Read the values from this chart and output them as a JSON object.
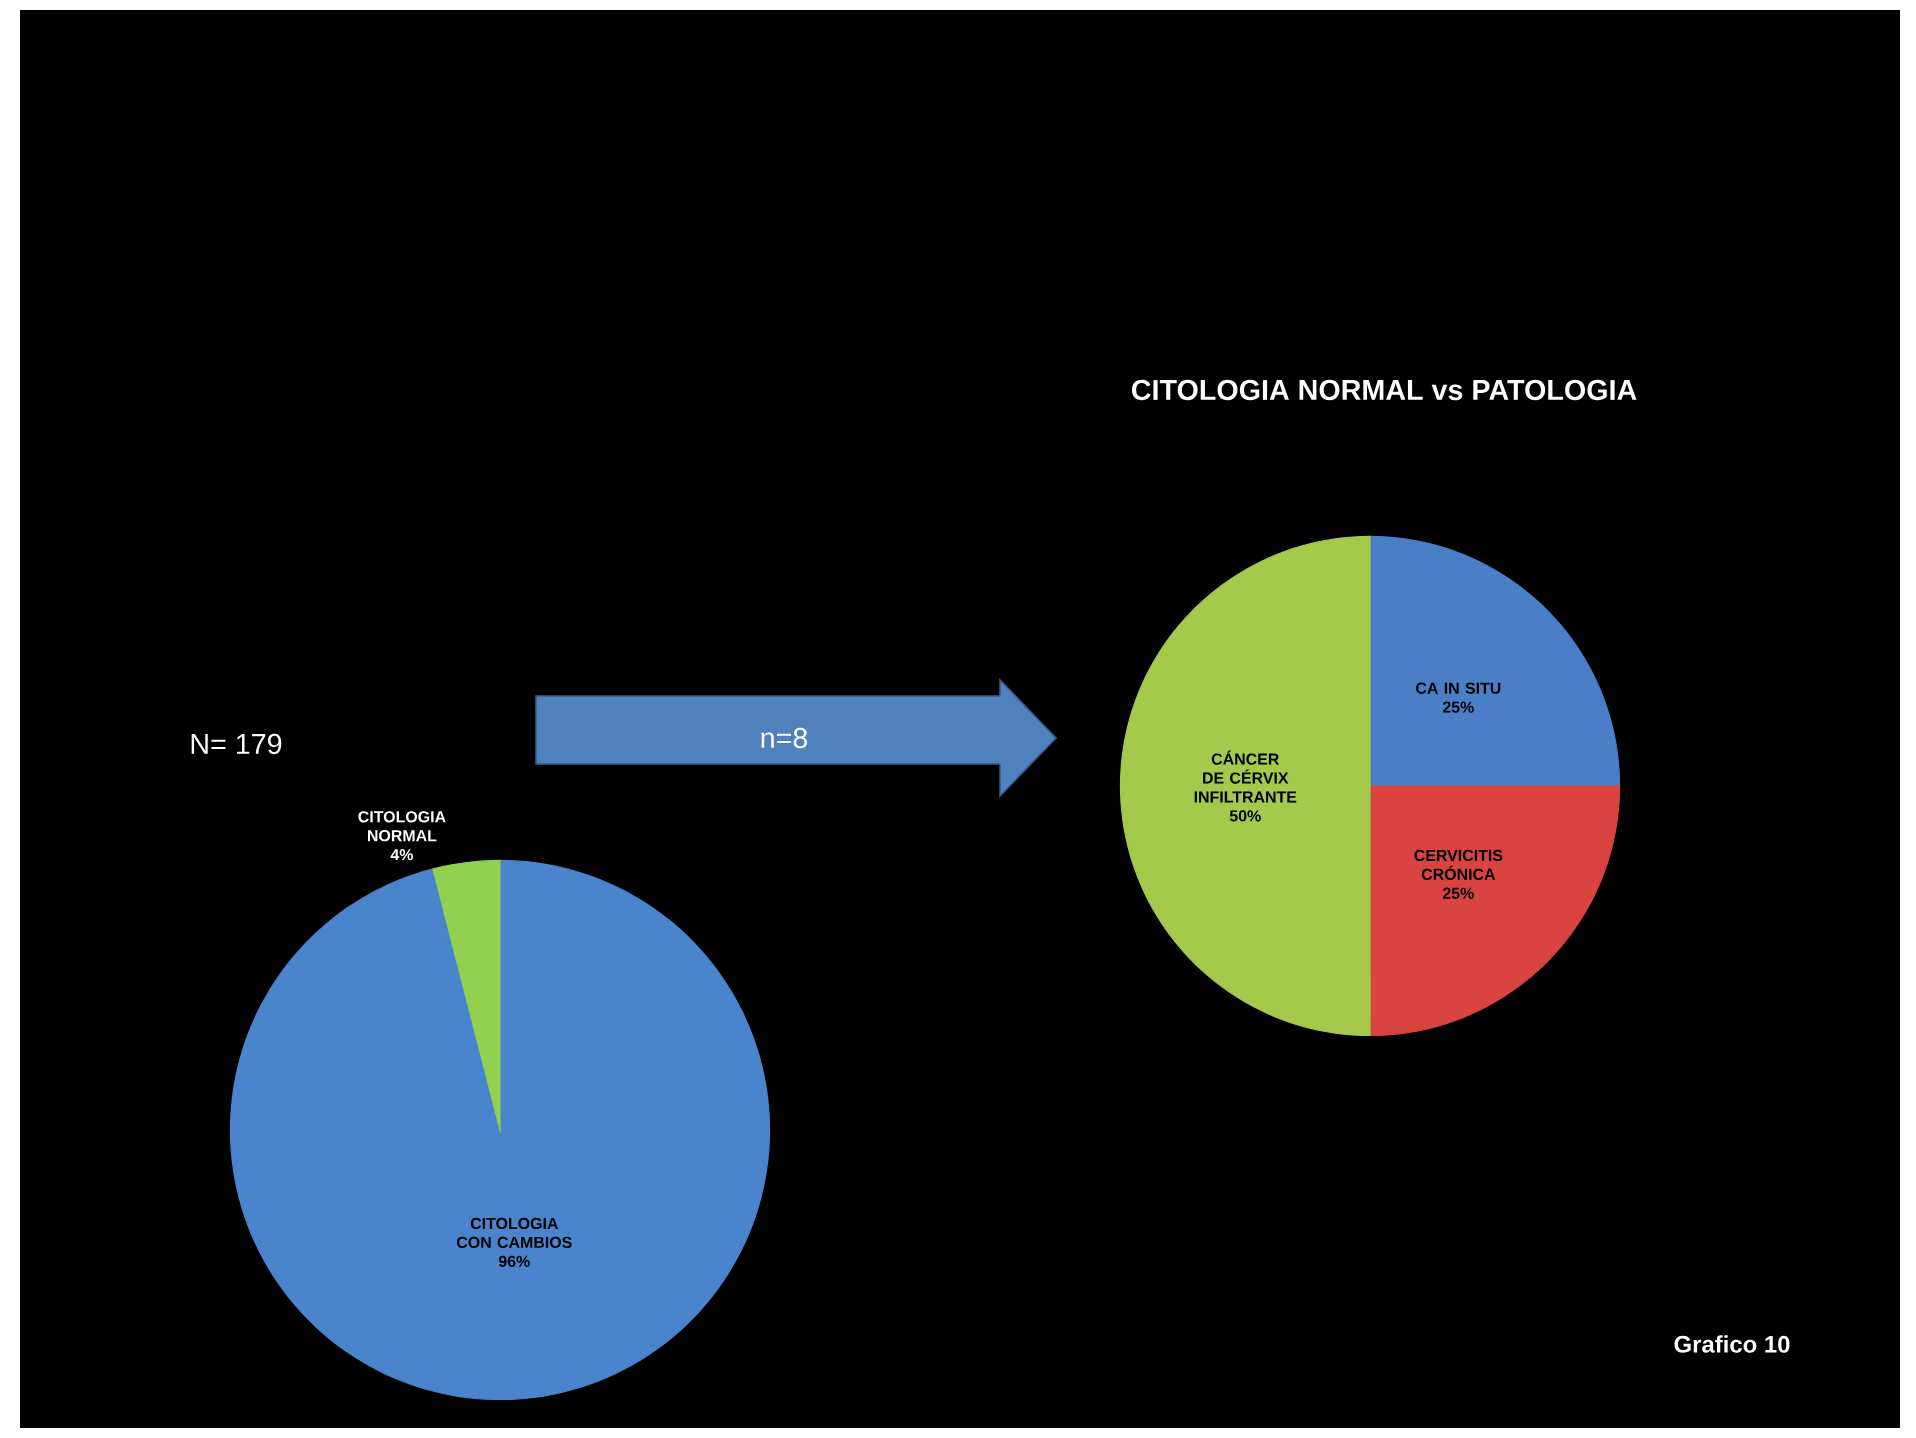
{
  "chart_data": [
    {
      "type": "pie",
      "categories": [
        "CITOLOGIA CON CAMBIOS",
        "CITOLOGIA NORMAL"
      ],
      "values": [
        96,
        4
      ],
      "value_labels": [
        "96%",
        "4%"
      ],
      "colors": [
        "#4a84cc",
        "#92d050"
      ],
      "annotations": [
        "N= 179"
      ]
    },
    {
      "type": "pie",
      "title": "CITOLOGIA NORMAL vs PATOLOGIA",
      "categories": [
        "CA IN SITU",
        "CERVICITIS CRÓNICA",
        "CÁNCER DE CÉRVIX INFILTRANTE"
      ],
      "values": [
        25,
        25,
        50
      ],
      "value_labels": [
        "25%",
        "25%",
        "50%"
      ],
      "colors": [
        "#4a7fc8",
        "#d94441",
        "#a4c94b"
      ],
      "annotations": [
        "n=8",
        "Grafico 10"
      ]
    }
  ]
}
